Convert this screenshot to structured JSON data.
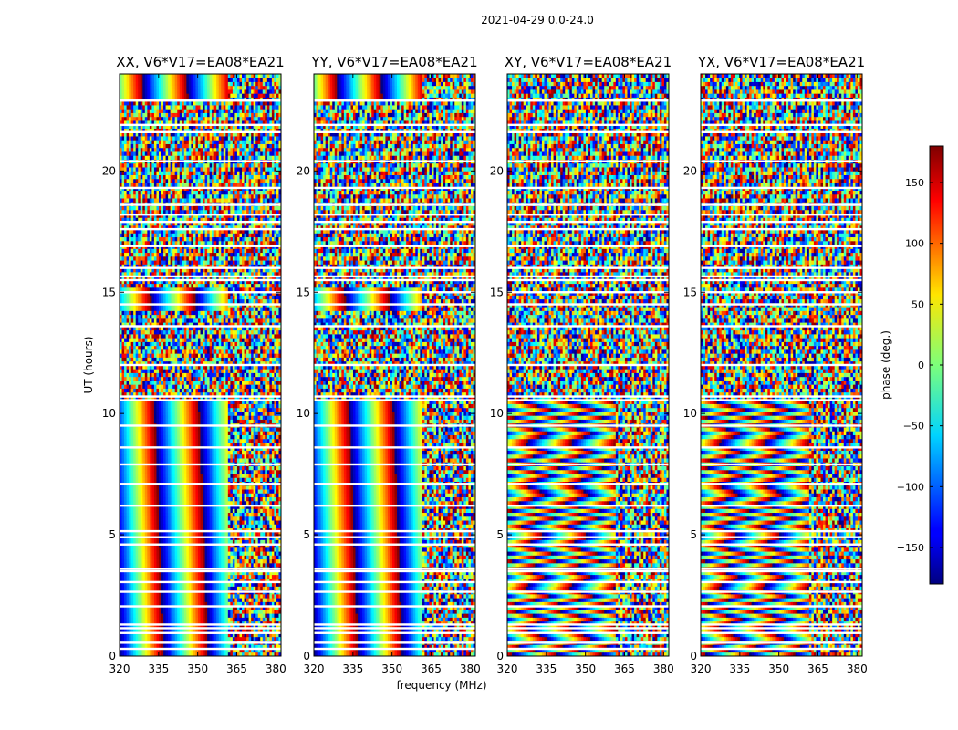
{
  "figure": {
    "suptitle": "2021-04-29 0.0-24.0",
    "xlabel": "frequency (MHz)",
    "ylabel": "UT (hours)",
    "colorbar_label": "phase (deg.)"
  },
  "chart_data": {
    "type": "heatmap",
    "colormap": "jet",
    "xlim": [
      320,
      382
    ],
    "ylim": [
      0,
      24
    ],
    "xticks": [
      320,
      335,
      350,
      365,
      380
    ],
    "yticks": [
      0,
      5,
      10,
      15,
      20
    ],
    "clim": [
      -180,
      180
    ],
    "cticks": [
      -150,
      -100,
      -50,
      0,
      50,
      100,
      150
    ],
    "panels": [
      {
        "title": "XX, V6*V17=EA08*EA21",
        "coherent_fringes": true
      },
      {
        "title": "YY, V6*V17=EA08*EA21",
        "coherent_fringes": true
      },
      {
        "title": "XY, V6*V17=EA08*EA21",
        "coherent_fringes": false
      },
      {
        "title": "YX, V6*V17=EA08*EA21",
        "coherent_fringes": false
      }
    ],
    "flagged_ut_hours": [
      0.3,
      0.55,
      0.95,
      1.15,
      1.3,
      2.05,
      2.65,
      3.05,
      3.5,
      3.6,
      4.6,
      4.9,
      5.15,
      6.2,
      7.1,
      7.9,
      8.6,
      9.5,
      10.55,
      10.7,
      12.0,
      13.6,
      14.5,
      15.0,
      15.5,
      15.65,
      16.0,
      16.9,
      17.6,
      17.9,
      18.2,
      18.6,
      19.3,
      20.4,
      21.6,
      21.9,
      22.9
    ]
  }
}
